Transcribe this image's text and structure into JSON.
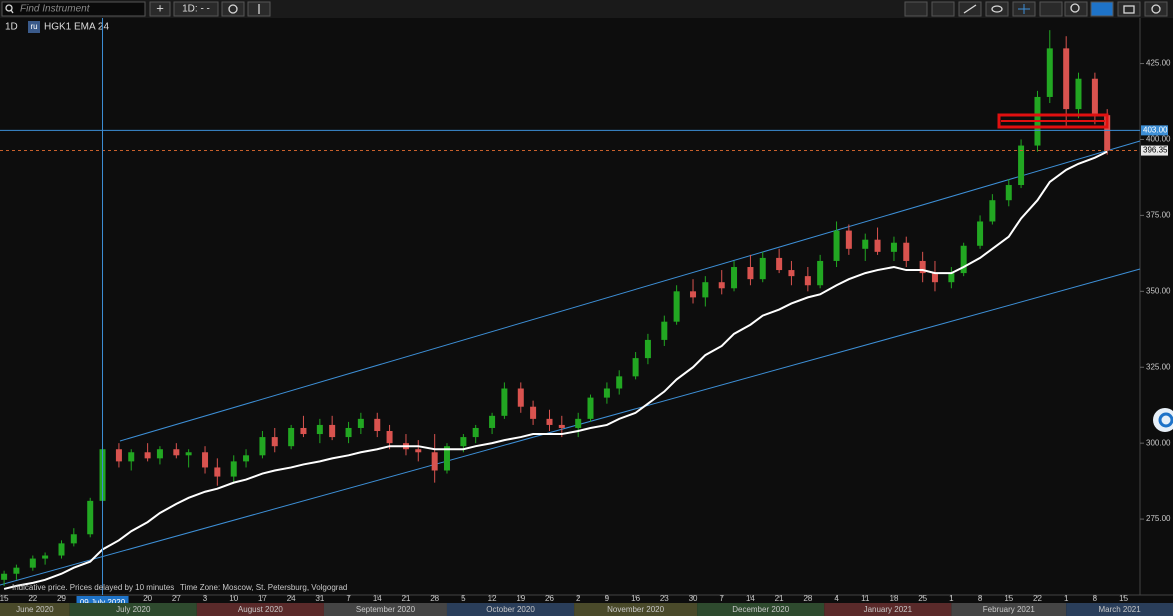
{
  "toolbar": {
    "search_placeholder": "Find Instrument",
    "add_button": "+",
    "timeframe_button": "1D: - -"
  },
  "legend": {
    "interval": "1D",
    "flag": "ru"
  },
  "footer_note": "Indicative price. Prices delayed by 10 minutes",
  "timezone": "Time Zone: Moscow, St. Petersburg, Volgograd",
  "chart_data": {
    "type": "candlestick",
    "symbol": "HGK1",
    "up_color": "#22a722",
    "down_color": "#d9534f",
    "x": [
      0,
      3,
      7,
      10,
      14,
      17,
      21,
      24,
      28,
      31,
      35,
      38,
      42,
      45,
      49,
      52,
      56,
      59,
      63,
      66,
      70,
      73,
      77,
      80,
      84,
      87,
      91,
      94,
      98,
      101,
      105,
      108,
      112,
      115,
      119,
      122,
      126,
      129,
      133,
      136,
      140,
      143,
      147,
      150,
      154,
      157,
      161,
      164,
      168,
      171,
      175,
      178,
      182,
      185,
      189,
      192,
      196,
      199,
      203,
      206,
      210,
      213,
      217,
      220,
      224,
      227,
      231,
      234,
      238,
      241,
      245,
      248,
      252,
      255,
      259,
      262,
      266,
      269
    ],
    "open": [
      255,
      257,
      259,
      262,
      263,
      267,
      270,
      281,
      298,
      294,
      297,
      295,
      298,
      296,
      297,
      292,
      289,
      294,
      296,
      302,
      299,
      305,
      303,
      306,
      302,
      305,
      308,
      304,
      300,
      298,
      297,
      291,
      299,
      302,
      305,
      309,
      318,
      312,
      308,
      306,
      305,
      308,
      315,
      318,
      322,
      328,
      334,
      340,
      350,
      348,
      353,
      351,
      358,
      354,
      361,
      357,
      355,
      352,
      360,
      370,
      364,
      367,
      363,
      366,
      360,
      356,
      353,
      356,
      365,
      373,
      380,
      385,
      398,
      414,
      430,
      410,
      420,
      408
    ],
    "high": [
      258,
      260,
      263,
      264,
      268,
      272,
      282,
      300,
      300,
      298,
      300,
      299,
      300,
      298,
      299,
      295,
      296,
      298,
      304,
      305,
      306,
      309,
      308,
      309,
      307,
      310,
      310,
      306,
      303,
      301,
      303,
      300,
      303,
      306,
      310,
      320,
      320,
      314,
      311,
      309,
      310,
      316,
      320,
      324,
      330,
      336,
      342,
      352,
      354,
      355,
      357,
      360,
      362,
      363,
      364,
      360,
      358,
      362,
      373,
      372,
      369,
      371,
      368,
      368,
      363,
      360,
      358,
      366,
      375,
      382,
      387,
      400,
      416,
      436,
      434,
      422,
      422,
      410
    ],
    "low": [
      253,
      255,
      258,
      260,
      262,
      266,
      269,
      280,
      292,
      291,
      294,
      293,
      295,
      292,
      290,
      286,
      287,
      292,
      295,
      297,
      298,
      302,
      300,
      301,
      300,
      303,
      302,
      298,
      296,
      294,
      287,
      290,
      297,
      300,
      303,
      308,
      310,
      306,
      304,
      302,
      302,
      307,
      313,
      316,
      321,
      326,
      332,
      339,
      346,
      345,
      349,
      350,
      352,
      353,
      356,
      352,
      350,
      351,
      358,
      362,
      360,
      362,
      360,
      358,
      353,
      350,
      351,
      355,
      364,
      372,
      378,
      384,
      396,
      412,
      404,
      407,
      405,
      395
    ],
    "close": [
      257,
      259,
      262,
      263,
      267,
      270,
      281,
      298,
      294,
      297,
      295,
      298,
      296,
      297,
      292,
      289,
      294,
      296,
      302,
      299,
      305,
      303,
      306,
      302,
      305,
      308,
      304,
      300,
      298,
      297,
      291,
      299,
      302,
      305,
      309,
      318,
      312,
      308,
      306,
      305,
      308,
      315,
      318,
      322,
      328,
      334,
      340,
      350,
      348,
      353,
      351,
      358,
      354,
      361,
      357,
      355,
      352,
      360,
      370,
      364,
      367,
      363,
      366,
      360,
      356,
      353,
      356,
      365,
      373,
      380,
      385,
      398,
      414,
      430,
      410,
      420,
      408,
      396.35
    ],
    "ema": {
      "name": "EMA 24",
      "color": "#ffffff",
      "values": [
        252,
        253,
        254,
        255,
        257,
        259,
        261,
        265,
        268,
        271,
        274,
        277,
        280,
        282,
        284,
        285,
        287,
        288,
        290,
        291,
        292,
        293,
        294,
        295,
        296,
        297,
        298,
        299,
        299,
        299,
        298,
        298,
        298,
        299,
        300,
        301,
        302,
        303,
        303,
        303,
        304,
        305,
        306,
        308,
        310,
        313,
        317,
        321,
        325,
        329,
        332,
        336,
        339,
        342,
        344,
        346,
        348,
        349,
        352,
        354,
        356,
        357,
        358,
        357,
        357,
        356,
        356,
        358,
        361,
        364,
        368,
        374,
        380,
        386,
        390,
        392,
        394,
        396
      ]
    },
    "xlim": [
      -1,
      277
    ],
    "ylim": [
      250,
      440
    ],
    "yticks": [
      {
        "value": 275,
        "label": "275.00"
      },
      {
        "value": 300,
        "label": "300.00"
      },
      {
        "value": 325,
        "label": "325.00"
      },
      {
        "value": 350,
        "label": "350.00"
      },
      {
        "value": 375,
        "label": "375.00"
      },
      {
        "value": 400,
        "label": "400.00"
      },
      {
        "value": 425,
        "label": "425.00"
      }
    ],
    "xticks": [
      {
        "value": 0,
        "label": "15"
      },
      {
        "value": 7,
        "label": "22"
      },
      {
        "value": 14,
        "label": "29"
      },
      {
        "value": 35,
        "label": "20"
      },
      {
        "value": 42,
        "label": "27"
      },
      {
        "value": 49,
        "label": "3"
      },
      {
        "value": 56,
        "label": "10"
      },
      {
        "value": 63,
        "label": "17"
      },
      {
        "value": 70,
        "label": "24"
      },
      {
        "value": 77,
        "label": "31"
      },
      {
        "value": 84,
        "label": "7"
      },
      {
        "value": 91,
        "label": "14"
      },
      {
        "value": 98,
        "label": "21"
      },
      {
        "value": 105,
        "label": "28"
      },
      {
        "value": 112,
        "label": "5"
      },
      {
        "value": 119,
        "label": "12"
      },
      {
        "value": 126,
        "label": "19"
      },
      {
        "value": 133,
        "label": "26"
      },
      {
        "value": 140,
        "label": "2"
      },
      {
        "value": 147,
        "label": "9"
      },
      {
        "value": 154,
        "label": "16"
      },
      {
        "value": 161,
        "label": "23"
      },
      {
        "value": 168,
        "label": "30"
      },
      {
        "value": 175,
        "label": "7"
      },
      {
        "value": 182,
        "label": "14"
      },
      {
        "value": 189,
        "label": "21"
      },
      {
        "value": 196,
        "label": "28"
      },
      {
        "value": 203,
        "label": "4"
      },
      {
        "value": 210,
        "label": "11"
      },
      {
        "value": 217,
        "label": "18"
      },
      {
        "value": 224,
        "label": "25"
      },
      {
        "value": 231,
        "label": "1"
      },
      {
        "value": 238,
        "label": "8"
      },
      {
        "value": 245,
        "label": "15"
      },
      {
        "value": 252,
        "label": "22"
      },
      {
        "value": 259,
        "label": "1"
      },
      {
        "value": 266,
        "label": "8"
      },
      {
        "value": 273,
        "label": "15"
      }
    ],
    "months": [
      {
        "value": -14,
        "label": "June 2020",
        "color": "#4a4a2a"
      },
      {
        "value": 16,
        "label": "July 2020",
        "color": "#2e4a2e"
      },
      {
        "value": 47,
        "label": "August 2020",
        "color": "#5a2a2a"
      },
      {
        "value": 78,
        "label": "September 2020",
        "color": "#454545"
      },
      {
        "value": 108,
        "label": "October 2020",
        "color": "#2a3e5a"
      },
      {
        "value": 139,
        "label": "November 2020",
        "color": "#4a4a2a"
      },
      {
        "value": 169,
        "label": "December 2020",
        "color": "#2e4a2e"
      },
      {
        "value": 200,
        "label": "January 2021",
        "color": "#5a2a2a"
      },
      {
        "value": 231,
        "label": "February 2021",
        "color": "#454545"
      },
      {
        "value": 259,
        "label": "March 2021",
        "color": "#2a3e5a"
      }
    ],
    "hline": {
      "value": 403,
      "label": "403.00",
      "color": "#3d8fd6"
    },
    "last_price": {
      "value": 396.35,
      "label": "396.35",
      "color": "#c8602c"
    },
    "crosshair": {
      "value": 24,
      "label": "09 July 2020",
      "color": "#3d8fd6"
    }
  }
}
